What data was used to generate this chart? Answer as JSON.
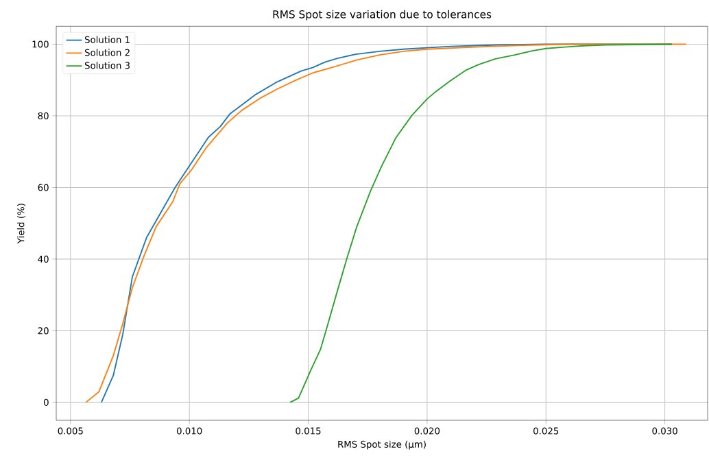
{
  "chart_data": {
    "type": "line",
    "title": "RMS Spot size variation due to tolerances",
    "xlabel": "RMS Spot size (µm)",
    "ylabel": "Yield (%)",
    "xlim": [
      0.0044,
      0.0318
    ],
    "ylim": [
      -5,
      105
    ],
    "xticks": [
      {
        "value": 0.005,
        "label": "0.005"
      },
      {
        "value": 0.01,
        "label": "0.010"
      },
      {
        "value": 0.015,
        "label": "0.015"
      },
      {
        "value": 0.02,
        "label": "0.020"
      },
      {
        "value": 0.025,
        "label": "0.025"
      },
      {
        "value": 0.03,
        "label": "0.030"
      }
    ],
    "yticks": [
      0,
      20,
      40,
      60,
      80,
      100
    ],
    "grid": true,
    "legend": "top left",
    "series": [
      {
        "name": "Solution 1",
        "color": "#1f77b4",
        "x": [
          0.0063,
          0.0068,
          0.0072,
          0.0076,
          0.0082,
          0.0088,
          0.0094,
          0.01,
          0.0104,
          0.0108,
          0.0113,
          0.0117,
          0.0122,
          0.0128,
          0.0137,
          0.0142,
          0.0147,
          0.0152,
          0.0157,
          0.0162,
          0.017,
          0.018,
          0.019,
          0.02,
          0.021,
          0.023,
          0.025,
          0.0303
        ],
        "values": [
          0,
          7.5,
          19,
          35,
          46,
          53,
          60,
          66,
          70,
          74,
          77,
          80.5,
          83,
          86,
          89.5,
          91,
          92.5,
          93.5,
          95,
          96,
          97.2,
          98,
          98.6,
          99,
          99.4,
          99.8,
          100,
          100
        ]
      },
      {
        "name": "Solution 2",
        "color": "#ff7f0e",
        "x": [
          0.00565,
          0.0062,
          0.0068,
          0.0072,
          0.0076,
          0.0081,
          0.0086,
          0.0093,
          0.0096,
          0.0101,
          0.0107,
          0.0116,
          0.0122,
          0.013,
          0.0137,
          0.0145,
          0.0152,
          0.016,
          0.017,
          0.018,
          0.019,
          0.02,
          0.022,
          0.024,
          0.026,
          0.0309
        ],
        "values": [
          0,
          3,
          13,
          22,
          32,
          41,
          49,
          56,
          61,
          65,
          71,
          78,
          81.5,
          85,
          87.5,
          90,
          92,
          93.5,
          95.5,
          97,
          98,
          98.6,
          99.2,
          99.7,
          100,
          100
        ]
      },
      {
        "name": "Solution 3",
        "color": "#2ca02c",
        "x": [
          0.01424,
          0.01459,
          0.01509,
          0.01552,
          0.01576,
          0.01623,
          0.01664,
          0.01704,
          0.01762,
          0.01809,
          0.01868,
          0.01937,
          0.02,
          0.02037,
          0.021,
          0.02165,
          0.02217,
          0.02287,
          0.02369,
          0.02439,
          0.025,
          0.02579,
          0.02672,
          0.02753,
          0.0303
        ],
        "values": [
          0,
          1.2,
          8.7,
          14.9,
          20.3,
          31.2,
          40.5,
          49,
          59,
          66,
          73.8,
          80.2,
          84.7,
          86.8,
          89.9,
          92.8,
          94.3,
          95.9,
          97,
          98.1,
          98.8,
          99.2,
          99.6,
          99.8,
          100
        ]
      }
    ]
  }
}
